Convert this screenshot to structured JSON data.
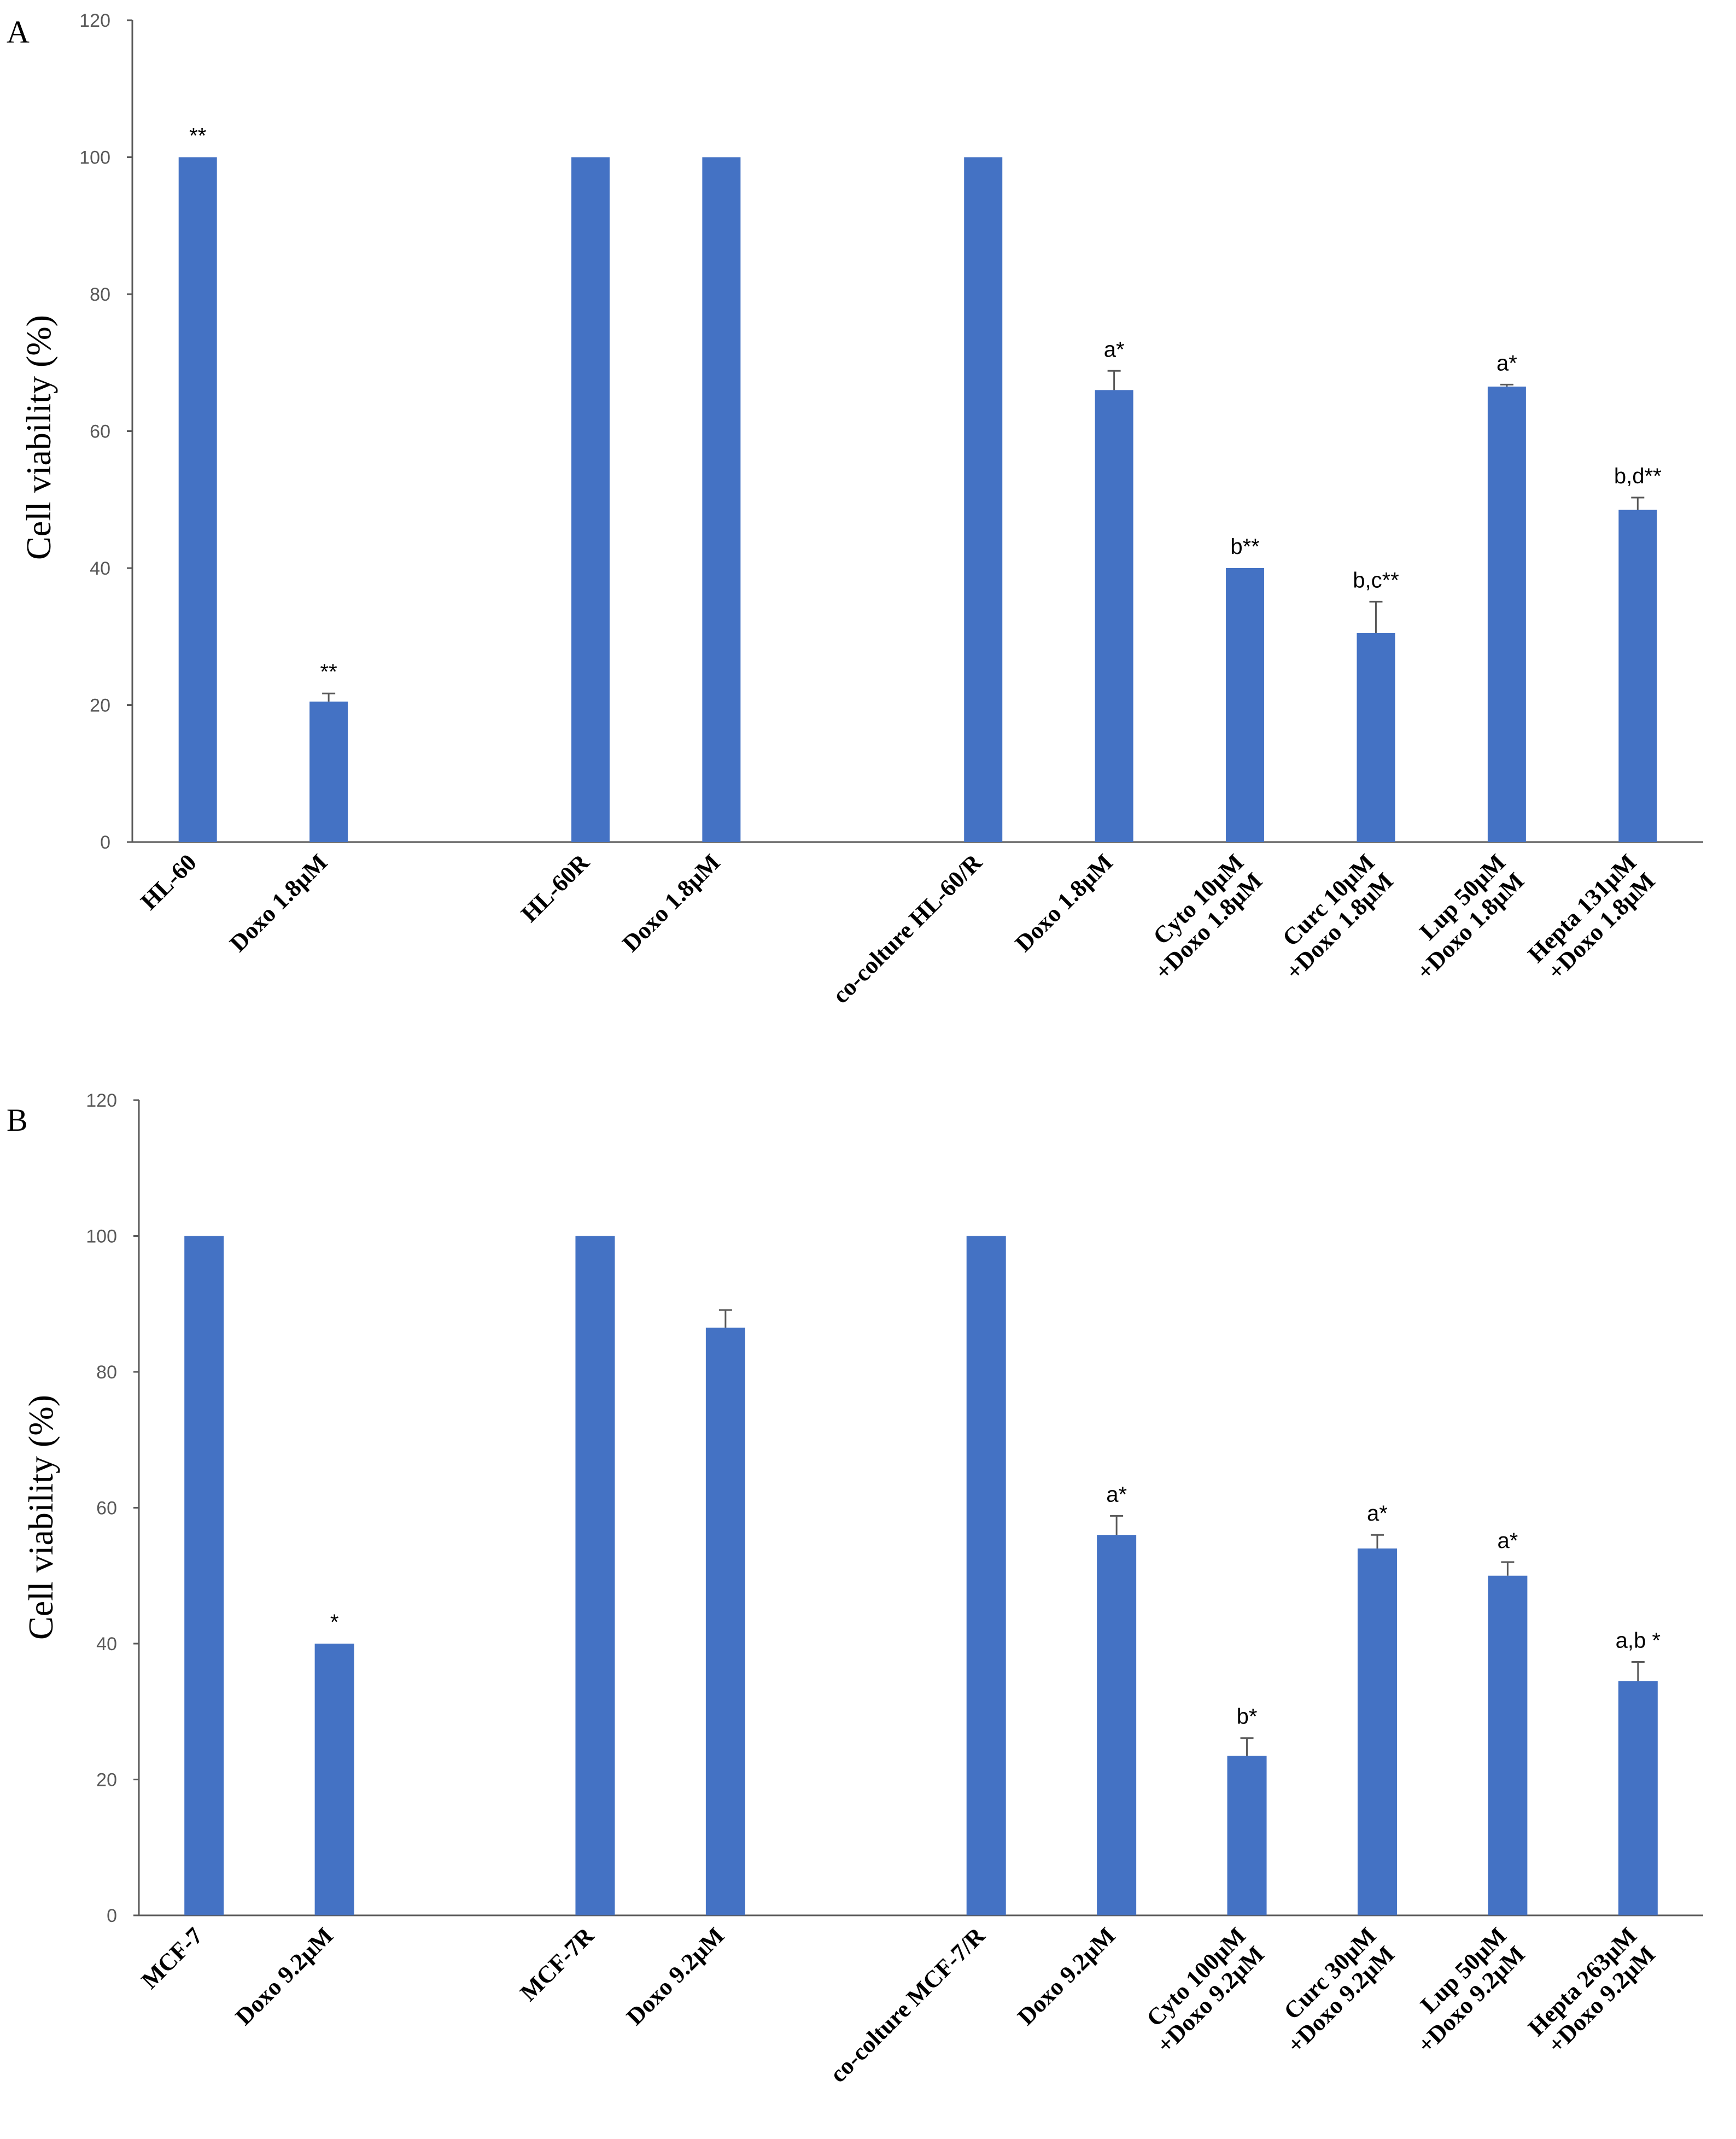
{
  "chart_data": [
    {
      "type": "bar",
      "panel": "A",
      "ylabel": "Cell viability (%)",
      "ylim": [
        0,
        120
      ],
      "yticks": [
        0,
        20,
        40,
        60,
        80,
        100,
        120
      ],
      "categories": [
        [
          "HL-60"
        ],
        [
          "Doxo 1.8µM"
        ],
        [
          "HL-60R"
        ],
        [
          "Doxo 1.8µM"
        ],
        [
          "co-colture HL-60/R"
        ],
        [
          "Doxo 1.8µM"
        ],
        [
          "Cyto 10µM",
          "+Doxo 1.8µM"
        ],
        [
          "Curc 10µM",
          "+Doxo 1.8µM"
        ],
        [
          "Lup 50µM",
          "+Doxo 1.8µM"
        ],
        [
          "Hepta 131µM",
          "+Doxo 1.8µM"
        ]
      ],
      "slots": [
        0,
        1,
        3,
        4,
        6,
        7,
        8,
        9,
        10,
        11
      ],
      "slot_count": 12,
      "values": [
        100,
        20.5,
        100,
        100,
        100,
        66,
        40,
        30.5,
        66.5,
        48.5
      ],
      "errors": [
        0,
        1.2,
        0,
        0,
        0,
        2.8,
        0,
        4.6,
        0.3,
        1.8
      ],
      "annotations": [
        "**",
        "**",
        "",
        "",
        "",
        "a*",
        "b**",
        "b,c**",
        "a*",
        "b,d**"
      ],
      "bar_color": "#4472C4"
    },
    {
      "type": "bar",
      "panel": "B",
      "ylabel": "Cell viability (%)",
      "ylim": [
        0,
        120
      ],
      "yticks": [
        0,
        20,
        40,
        60,
        80,
        100,
        120
      ],
      "categories": [
        [
          "MCF-7"
        ],
        [
          "Doxo 9.2µM"
        ],
        [
          "MCF-7R"
        ],
        [
          "Doxo 9.2µM"
        ],
        [
          "co-colture MCF-7/R"
        ],
        [
          "Doxo 9.2µM"
        ],
        [
          "Cyto 100µM",
          "+Doxo 9.2µM"
        ],
        [
          "Curc 30µM",
          "+Doxo 9.2µM"
        ],
        [
          "Lup 50µM",
          "+Doxo 9.2µM"
        ],
        [
          "Hepta 263µM",
          "+Doxo 9.2µM"
        ]
      ],
      "slots": [
        0,
        1,
        3,
        4,
        6,
        7,
        8,
        9,
        10,
        11
      ],
      "slot_count": 12,
      "values": [
        100,
        40,
        100,
        86.5,
        100,
        56,
        23.5,
        54,
        50,
        34.5
      ],
      "errors": [
        0,
        0,
        0,
        2.6,
        0,
        2.8,
        2.6,
        2.0,
        2.0,
        2.8
      ],
      "annotations": [
        "",
        "*",
        "",
        "",
        "",
        "a*",
        "b*",
        "a*",
        "a*",
        "a,b *"
      ],
      "bar_color": "#4472C4"
    }
  ]
}
